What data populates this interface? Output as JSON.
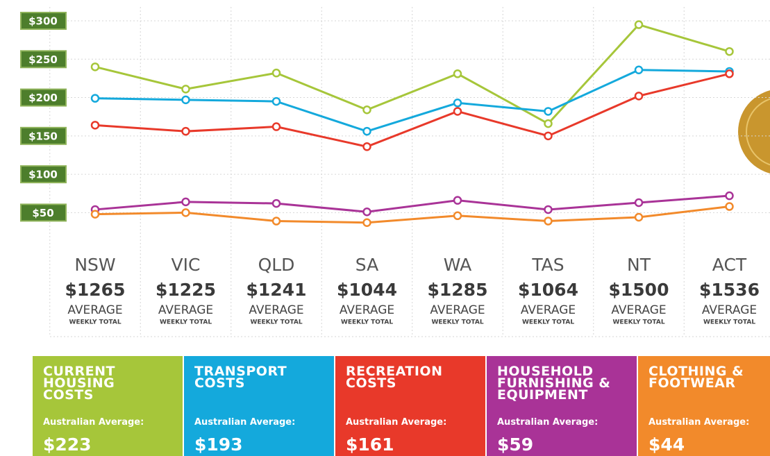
{
  "chart_data": {
    "type": "line",
    "categories": [
      "NSW",
      "VIC",
      "QLD",
      "SA",
      "WA",
      "TAS",
      "NT",
      "ACT"
    ],
    "totals": [
      1265,
      1225,
      1241,
      1044,
      1285,
      1064,
      1500,
      1536
    ],
    "total_labels": [
      "$1265",
      "$1225",
      "$1241",
      "$1044",
      "$1285",
      "$1064",
      "$1500",
      "$1536"
    ],
    "total_caption": "AVERAGE",
    "total_subcaption": "WEEKLY TOTAL",
    "average_caption": "Australian Average:",
    "ylim": [
      25,
      300
    ],
    "yticks": [
      {
        "value": 50,
        "label": "$50"
      },
      {
        "value": 100,
        "label": "$100"
      },
      {
        "value": 150,
        "label": "$150"
      },
      {
        "value": 200,
        "label": "$200"
      },
      {
        "value": 250,
        "label": "$250"
      },
      {
        "value": 300,
        "label": "$300"
      }
    ],
    "grid": true,
    "series": [
      {
        "name": "CURRENT HOUSING COSTS",
        "color": "#a6c63a",
        "values": [
          240,
          211,
          232,
          184,
          231,
          166,
          295,
          260
        ],
        "average": 223,
        "average_label": "$223"
      },
      {
        "name": "TRANSPORT COSTS",
        "color": "#14a9dc",
        "values": [
          199,
          197,
          195,
          156,
          193,
          182,
          236,
          234
        ],
        "average": 193,
        "average_label": "$193"
      },
      {
        "name": "RECREATION COSTS",
        "color": "#e8392a",
        "values": [
          164,
          156,
          162,
          136,
          182,
          150,
          202,
          231
        ],
        "average": 161,
        "average_label": "$161"
      },
      {
        "name": "HOUSEHOLD FURNISHING & EQUIPMENT",
        "color": "#a93397",
        "values": [
          54,
          64,
          62,
          51,
          66,
          54,
          63,
          72
        ],
        "average": 59,
        "average_label": "$59"
      },
      {
        "name": "CLOTHING & FOOTWEAR",
        "color": "#f28a2b",
        "values": [
          48,
          50,
          39,
          37,
          46,
          39,
          44,
          58
        ],
        "average": 44,
        "average_label": "$44"
      }
    ]
  }
}
